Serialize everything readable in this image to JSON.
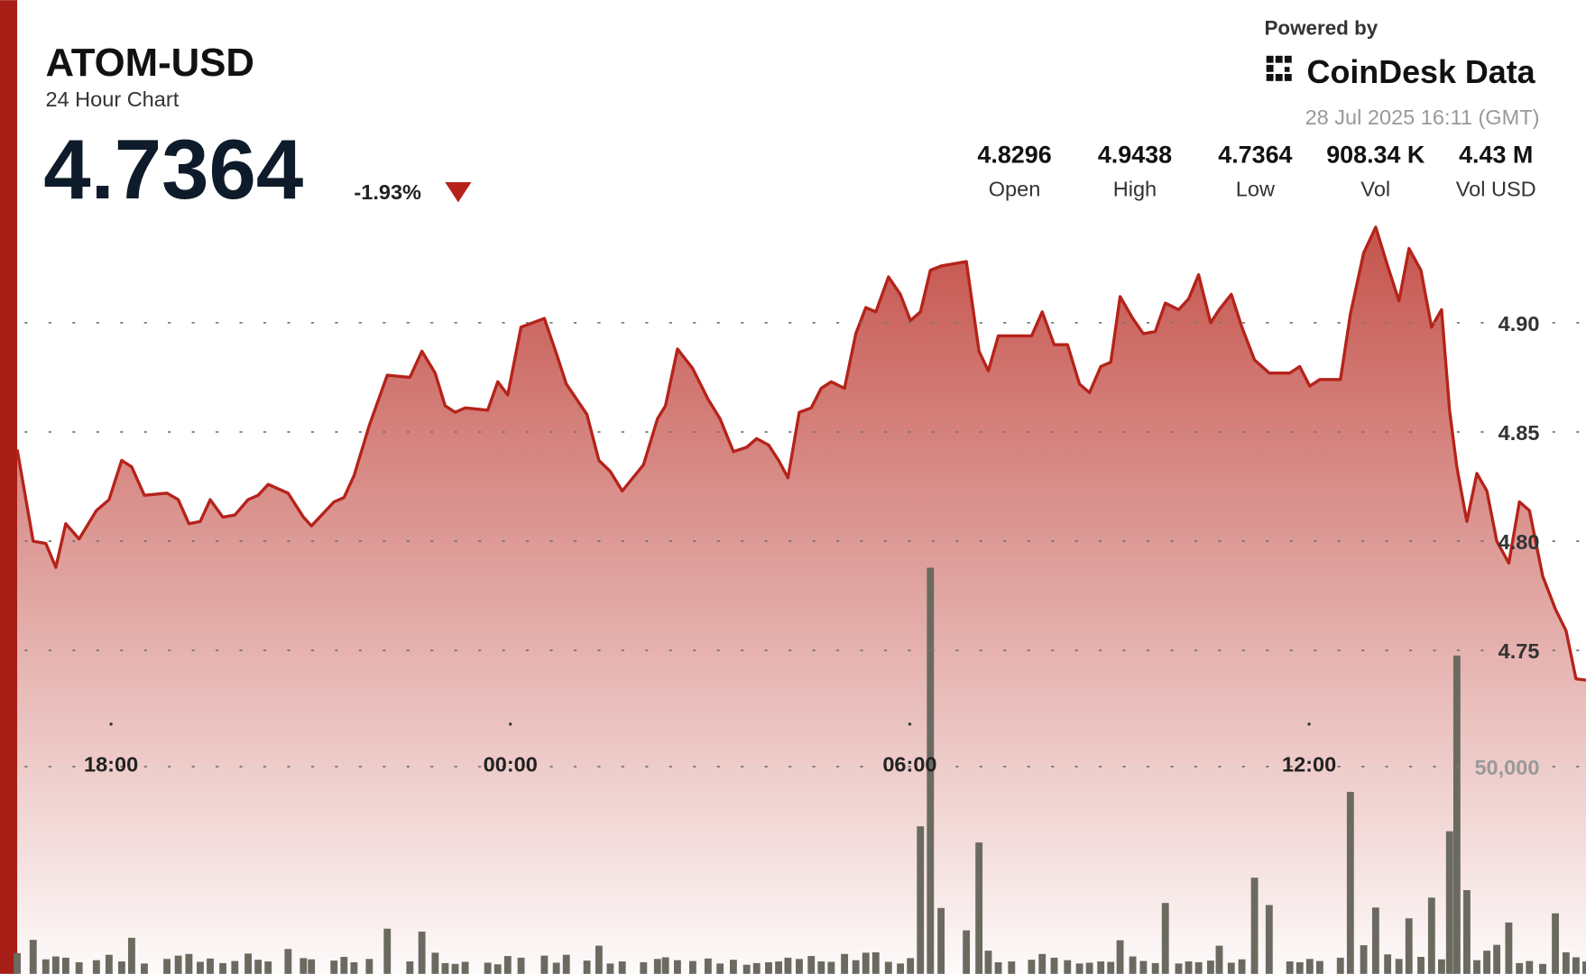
{
  "header": {
    "title": "ATOM-USD",
    "subtitle": "24 Hour Chart",
    "price": "4.7364",
    "change": "-1.93%",
    "powered": "Powered by",
    "brand": "CoinDesk Data",
    "timestamp": "28 Jul 2025 16:11 (GMT)",
    "stats": [
      {
        "value": "4.8296",
        "label": "Open"
      },
      {
        "value": "4.9438",
        "label": "High"
      },
      {
        "value": "4.7364",
        "label": "Low"
      },
      {
        "value": "908.34 K",
        "label": "Vol"
      },
      {
        "value": "4.43 M",
        "label": "Vol USD"
      }
    ]
  },
  "chart_data": {
    "type": "area",
    "x": [
      16.59,
      16.83,
      17.02,
      17.17,
      17.32,
      17.52,
      17.78,
      17.97,
      18.16,
      18.31,
      18.5,
      18.84,
      19.01,
      19.17,
      19.34,
      19.49,
      19.68,
      19.86,
      20.06,
      20.21,
      20.36,
      20.66,
      20.89,
      21.01,
      21.35,
      21.5,
      21.65,
      21.88,
      22.15,
      22.49,
      22.67,
      22.87,
      23.02,
      23.17,
      23.32,
      23.66,
      23.81,
      23.96,
      24.16,
      24.51,
      24.69,
      24.84,
      25.15,
      25.33,
      25.5,
      25.68,
      26.0,
      26.21,
      26.33,
      26.51,
      26.74,
      26.97,
      27.15,
      27.35,
      27.55,
      27.7,
      27.88,
      28.03,
      28.17,
      28.34,
      28.52,
      28.67,
      28.82,
      29.02,
      29.19,
      29.34,
      29.49,
      29.68,
      29.86,
      30.01,
      30.16,
      30.31,
      30.47,
      30.85,
      31.04,
      31.18,
      31.33,
      31.53,
      31.83,
      31.99,
      32.17,
      32.37,
      32.55,
      32.7,
      32.87,
      33.02,
      33.16,
      33.35,
      33.51,
      33.69,
      33.84,
      34.04,
      34.19,
      34.34,
      34.52,
      34.65,
      34.83,
      34.99,
      35.18,
      35.4,
      35.71,
      35.86,
      36.01,
      36.16,
      36.47,
      36.62,
      36.82,
      37.0,
      37.18,
      37.35,
      37.5,
      37.68,
      37.84,
      37.99,
      38.11,
      38.22,
      38.37,
      38.52,
      38.67,
      38.82,
      39.0,
      39.16,
      39.31,
      39.51,
      39.7,
      39.86,
      40.01,
      40.16
    ],
    "series": [
      {
        "name": "Price",
        "color": "#b5231a",
        "values": [
          4.842,
          4.8,
          4.799,
          4.788,
          4.808,
          4.801,
          4.814,
          4.819,
          4.837,
          4.834,
          4.821,
          4.822,
          4.819,
          4.808,
          4.809,
          4.819,
          4.811,
          4.812,
          4.819,
          4.821,
          4.826,
          4.822,
          4.811,
          4.807,
          4.818,
          4.82,
          4.83,
          4.853,
          4.876,
          4.875,
          4.887,
          4.877,
          4.862,
          4.859,
          4.861,
          4.86,
          4.873,
          4.867,
          4.898,
          4.902,
          4.886,
          4.872,
          4.858,
          4.837,
          4.832,
          4.823,
          4.835,
          4.856,
          4.862,
          4.888,
          4.879,
          4.865,
          4.856,
          4.841,
          4.843,
          4.847,
          4.844,
          4.837,
          4.829,
          4.859,
          4.861,
          4.87,
          4.873,
          4.87,
          4.895,
          4.907,
          4.905,
          4.921,
          4.913,
          4.901,
          4.905,
          4.924,
          4.926,
          4.928,
          4.887,
          4.878,
          4.894,
          4.894,
          4.894,
          4.905,
          4.89,
          4.89,
          4.872,
          4.868,
          4.88,
          4.882,
          4.912,
          4.902,
          4.895,
          4.896,
          4.909,
          4.906,
          4.911,
          4.922,
          4.9,
          4.906,
          4.913,
          4.898,
          4.883,
          4.877,
          4.877,
          4.88,
          4.871,
          4.874,
          4.874,
          4.904,
          4.932,
          4.9438,
          4.926,
          4.91,
          4.934,
          4.924,
          4.898,
          4.906,
          4.86,
          4.834,
          4.809,
          4.831,
          4.823,
          4.8,
          4.79,
          4.818,
          4.814,
          4.784,
          4.769,
          4.759,
          4.737,
          4.7364
        ]
      },
      {
        "name": "Volume",
        "color": "#6b6a60",
        "type": "bar",
        "axis": "y2",
        "values": [
          5000,
          8200,
          3500,
          4200,
          3900,
          2800,
          3300,
          4600,
          3000,
          8700,
          2500,
          3600,
          4400,
          4800,
          2900,
          3700,
          2600,
          3100,
          4900,
          3400,
          3000,
          6000,
          3800,
          3500,
          3200,
          4100,
          2800,
          3600,
          10900,
          3000,
          10200,
          5100,
          2600,
          2400,
          2900,
          2700,
          2300,
          4300,
          3900,
          4400,
          2700,
          4600,
          3200,
          6800,
          2500,
          3000,
          2800,
          3600,
          4000,
          3300,
          3100,
          3700,
          2500,
          3400,
          2200,
          2600,
          2800,
          3000,
          3900,
          3600,
          4300,
          3000,
          2900,
          4800,
          3300,
          5100,
          5200,
          2900,
          2500,
          3800,
          35600,
          98000,
          15900,
          10500,
          31700,
          5600,
          2800,
          3000,
          3400,
          4800,
          3900,
          3300,
          2500,
          2700,
          3000,
          2900,
          8100,
          4200,
          3100,
          2600,
          17100,
          2500,
          3000,
          2800,
          3200,
          6800,
          2700,
          3500,
          23200,
          16600,
          3000,
          2800,
          3600,
          3100,
          3900,
          43900,
          6900,
          16000,
          4700,
          3600,
          13400,
          4100,
          18400,
          3500,
          34400,
          76800,
          20200,
          3300,
          5600,
          7000,
          12400,
          2600,
          3100,
          2400,
          14600,
          5200,
          4000,
          3000
        ]
      }
    ],
    "xlim": [
      16.59,
      40.16
    ],
    "xticks": [
      {
        "value": 18,
        "label": "18:00"
      },
      {
        "value": 24,
        "label": "00:00"
      },
      {
        "value": 30,
        "label": "06:00"
      },
      {
        "value": 36,
        "label": "12:00"
      }
    ],
    "ylim": [
      4.6019,
      4.9505
    ],
    "yticks": [
      4.75,
      {
        "value": 4.8,
        "label": "4.80"
      },
      4.85,
      {
        "value": 4.9,
        "label": "4.90"
      }
    ],
    "y2lim": [
      0,
      183700
    ],
    "y2ticks": [
      {
        "value": 50000,
        "label": "50,000"
      }
    ],
    "grid": true
  }
}
